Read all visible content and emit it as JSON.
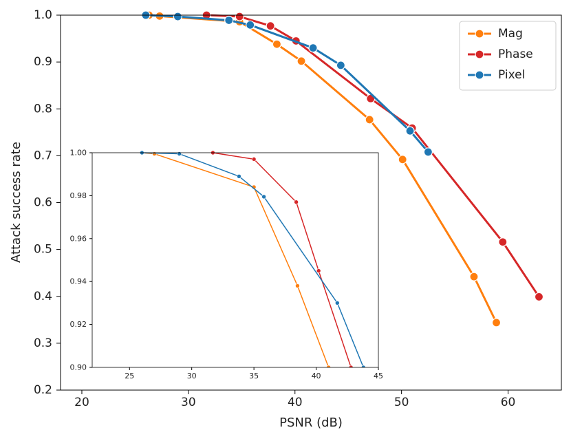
{
  "chart_data": [
    {
      "type": "line",
      "xlabel": "PSNR (dB)",
      "ylabel": "Attack success rate",
      "xlim": [
        18,
        65
      ],
      "ylim": [
        0.2,
        1.0
      ],
      "xticks": [
        20,
        30,
        40,
        50,
        60
      ],
      "xtick_labels": [
        "20",
        "30",
        "40",
        "50",
        "60"
      ],
      "yticks": [
        0.2,
        0.3,
        0.4,
        0.5,
        0.6,
        0.7,
        0.8,
        0.9,
        1.0
      ],
      "ytick_labels": [
        "0.2",
        "0.3",
        "0.4",
        "0.5",
        "0.6",
        "0.7",
        "0.8",
        "0.9",
        "1.0"
      ],
      "legend_position": "top-right",
      "series": [
        {
          "name": "Mag",
          "color": "#ff7f0e",
          "x": [
            26.3,
            27.3,
            34.8,
            38.3,
            40.6,
            47.0,
            50.1,
            56.8,
            58.9
          ],
          "y": [
            1.0,
            0.998,
            0.986,
            0.938,
            0.902,
            0.777,
            0.692,
            0.442,
            0.344
          ]
        },
        {
          "name": "Phase",
          "color": "#d62728",
          "x": [
            31.7,
            34.8,
            37.7,
            40.1,
            47.1,
            51.0,
            59.5,
            62.9
          ],
          "y": [
            1.0,
            0.997,
            0.977,
            0.945,
            0.822,
            0.759,
            0.516,
            0.399
          ]
        },
        {
          "name": "Pixel",
          "color": "#1f77b4",
          "x": [
            26.0,
            29.0,
            33.8,
            35.8,
            41.7,
            44.3,
            50.8,
            52.5
          ],
          "y": [
            1.0,
            0.997,
            0.989,
            0.979,
            0.93,
            0.893,
            0.753,
            0.708
          ]
        }
      ]
    },
    {
      "type": "line",
      "inset": true,
      "xlim": [
        22,
        45
      ],
      "ylim": [
        0.9,
        1.0
      ],
      "xticks": [
        25,
        30,
        35,
        40,
        45
      ],
      "xtick_labels": [
        "25",
        "30",
        "35",
        "40",
        "45"
      ],
      "yticks": [
        0.9,
        0.92,
        0.94,
        0.96,
        0.98,
        1.0
      ],
      "ytick_labels": [
        "0.90",
        "0.92",
        "0.94",
        "0.96",
        "0.98",
        "1.00"
      ],
      "series": [
        {
          "name": "Mag",
          "color": "#ff7f0e",
          "x": [
            26.0,
            27.0,
            35.0,
            38.5,
            41.0
          ],
          "y": [
            1.0,
            0.9995,
            0.984,
            0.938,
            0.9
          ]
        },
        {
          "name": "Phase",
          "color": "#d62728",
          "x": [
            31.7,
            35.0,
            38.4,
            40.2,
            42.8
          ],
          "y": [
            1.0,
            0.997,
            0.977,
            0.945,
            0.9
          ]
        },
        {
          "name": "Pixel",
          "color": "#1f77b4",
          "x": [
            26.0,
            29.0,
            33.8,
            35.8,
            41.7,
            43.8
          ],
          "y": [
            1.0,
            0.9995,
            0.989,
            0.9795,
            0.93,
            0.9
          ]
        }
      ]
    }
  ]
}
